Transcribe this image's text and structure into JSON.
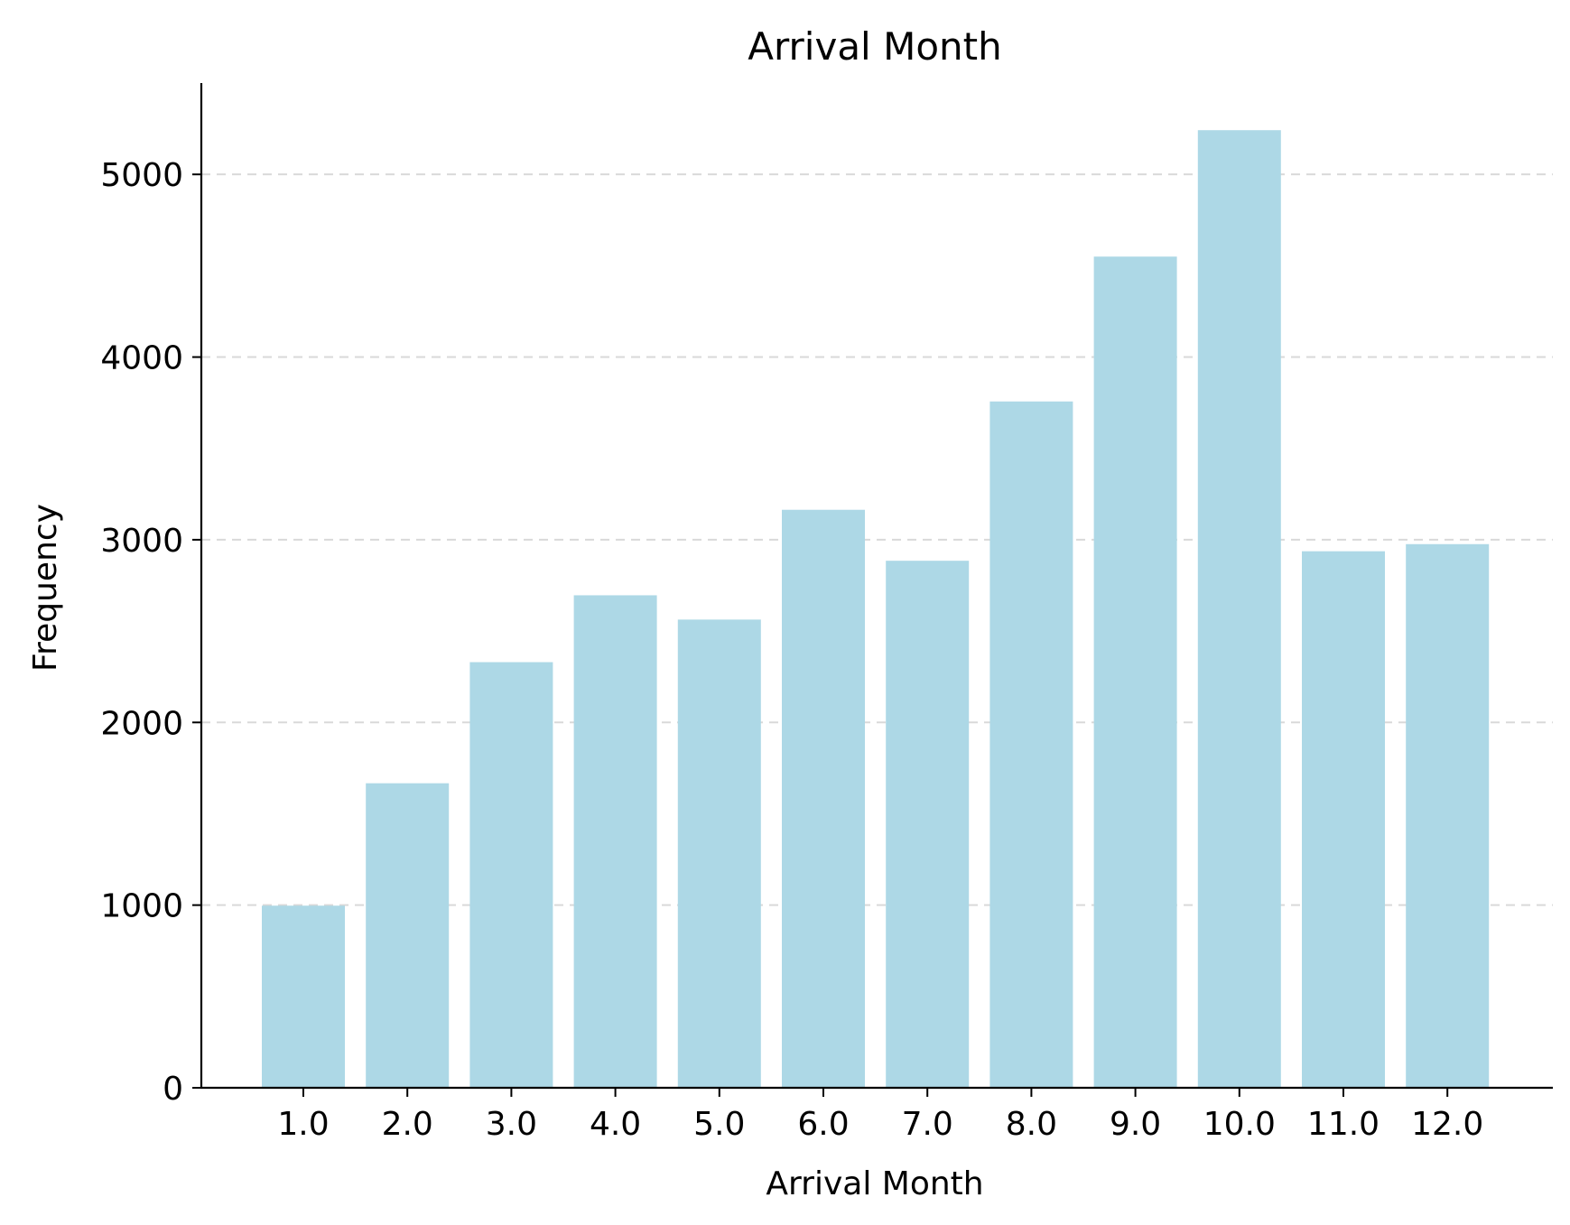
{
  "chart_data": {
    "type": "bar",
    "title": "Arrival Month",
    "xlabel": "Arrival Month",
    "ylabel": "Frequency",
    "categories": [
      "1.0",
      "2.0",
      "3.0",
      "4.0",
      "5.0",
      "6.0",
      "7.0",
      "8.0",
      "9.0",
      "10.0",
      "11.0",
      "12.0"
    ],
    "values": [
      997,
      1667,
      2330,
      2696,
      2563,
      3164,
      2885,
      3757,
      4550,
      5242,
      2937,
      2976
    ],
    "ylim": [
      0,
      5500
    ],
    "yticks": [
      0,
      1000,
      2000,
      3000,
      4000,
      5000
    ],
    "ytick_labels": [
      "0",
      "1000",
      "2000",
      "3000",
      "4000",
      "5000"
    ],
    "grid": {
      "y": true,
      "style": "dashed"
    },
    "bar_color": "#add8e6",
    "legend": null
  }
}
